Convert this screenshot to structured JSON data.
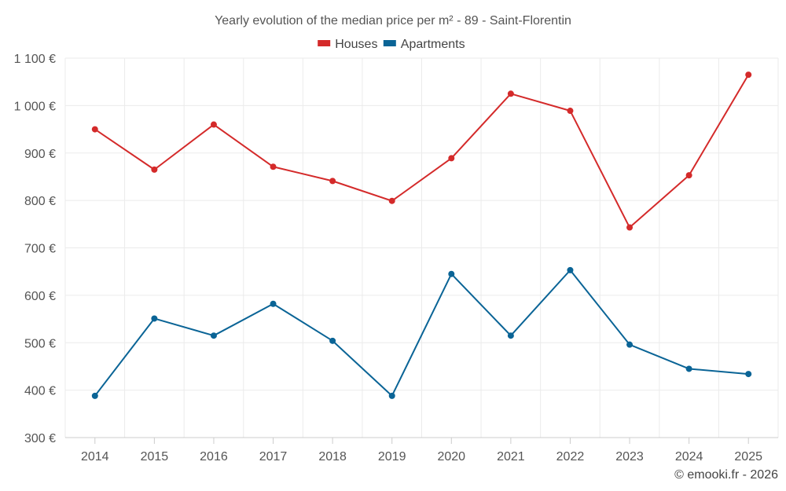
{
  "chart_data": {
    "type": "line",
    "title": "Yearly evolution of the median price per m² - 89 - Saint-Florentin",
    "categories": [
      "2014",
      "2015",
      "2016",
      "2017",
      "2018",
      "2019",
      "2020",
      "2021",
      "2022",
      "2023",
      "2024",
      "2025"
    ],
    "series": [
      {
        "name": "Houses",
        "color": "#d42a2a",
        "values": [
          950,
          865,
          960,
          871,
          841,
          799,
          889,
          1025,
          989,
          743,
          853,
          1065
        ]
      },
      {
        "name": "Apartments",
        "color": "#0a6496",
        "values": [
          388,
          551,
          515,
          582,
          504,
          388,
          645,
          515,
          653,
          496,
          445,
          434
        ]
      }
    ],
    "ylim": [
      300,
      1100
    ],
    "yticks": [
      300,
      400,
      500,
      600,
      700,
      800,
      900,
      1000,
      1100
    ],
    "ytick_labels": [
      "300 €",
      "400 €",
      "500 €",
      "600 €",
      "700 €",
      "800 €",
      "900 €",
      "1 000 €",
      "1 100 €"
    ],
    "xlabel": "",
    "ylabel": "",
    "grid": true,
    "legend_position": "top-center"
  },
  "credit": "© emooki.fr - 2026"
}
